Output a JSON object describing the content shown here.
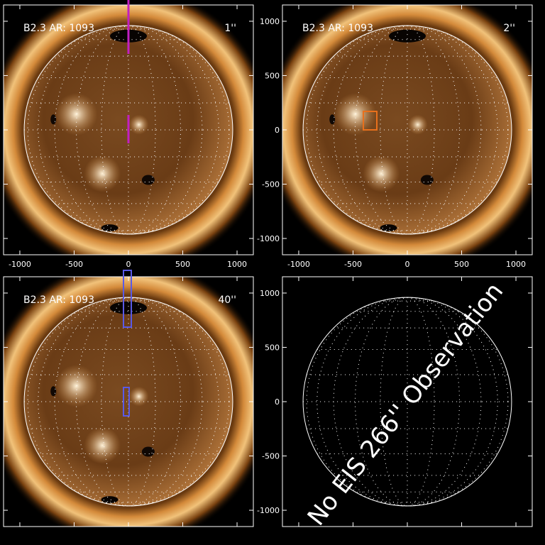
{
  "axes": {
    "xlim": [
      -1150,
      1150
    ],
    "ylim": [
      -1150,
      1150
    ],
    "xticks": [
      -1000,
      -500,
      0,
      500,
      1000
    ],
    "yticks": [
      1000,
      500,
      0,
      -500,
      -1000
    ]
  },
  "panels": [
    {
      "label": "B2.3 AR: 1093",
      "slit": "1''",
      "slit_color": "#c21fc2"
    },
    {
      "label": "B2.3 AR: 1093",
      "slit": "2''",
      "slit_color": "#e8701c"
    },
    {
      "label": "B2.3 AR: 1093",
      "slit": "40''",
      "slit_color": "#5a5ae6"
    },
    {
      "message": "No EIS 266'' Observation"
    }
  ]
}
